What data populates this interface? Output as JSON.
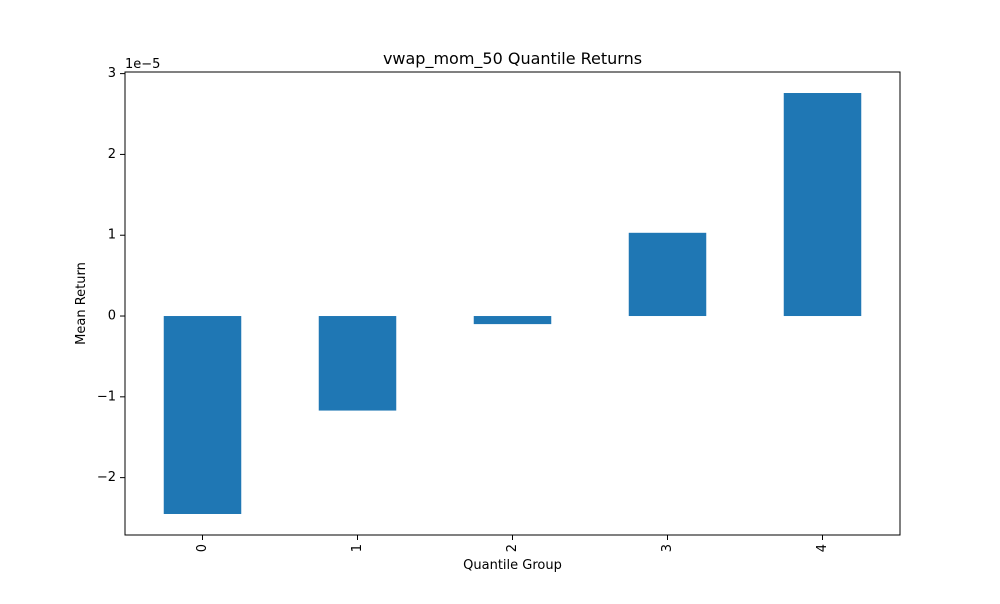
{
  "chart_data": {
    "type": "bar",
    "title": "vwap_mom_50 Quantile Returns",
    "xlabel": "Quantile Group",
    "ylabel": "Mean Return",
    "scale_label": "1e−5",
    "categories": [
      "0",
      "1",
      "2",
      "3",
      "4"
    ],
    "values": [
      -2.45e-05,
      -1.17e-05,
      -1e-06,
      1.03e-05,
      2.76e-05
    ],
    "ylim": [
      -2.71e-05,
      3.02e-05
    ],
    "yticks": [
      -2,
      -1,
      0,
      1,
      2,
      3
    ],
    "ytick_labels": [
      "−2",
      "−1",
      "0",
      "1",
      "2",
      "3"
    ],
    "bar_color": "#1f77b4",
    "grid": false,
    "legend": "none"
  }
}
